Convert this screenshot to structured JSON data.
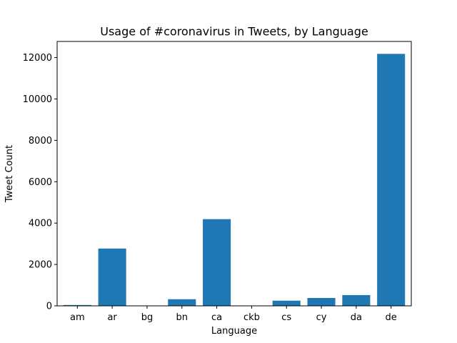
{
  "chart_data": {
    "type": "bar",
    "title": "Usage of #coronavirus in Tweets, by Language",
    "xlabel": "Language",
    "ylabel": "Tweet Count",
    "categories": [
      "am",
      "ar",
      "bg",
      "bn",
      "ca",
      "ckb",
      "cs",
      "cy",
      "da",
      "de"
    ],
    "values": [
      40,
      2770,
      5,
      320,
      4190,
      5,
      250,
      380,
      520,
      12180
    ],
    "ylim": [
      0,
      12780
    ],
    "yticks": [
      0,
      2000,
      4000,
      6000,
      8000,
      10000,
      12000
    ],
    "grid": false,
    "bar_color": "#1f77b4"
  }
}
